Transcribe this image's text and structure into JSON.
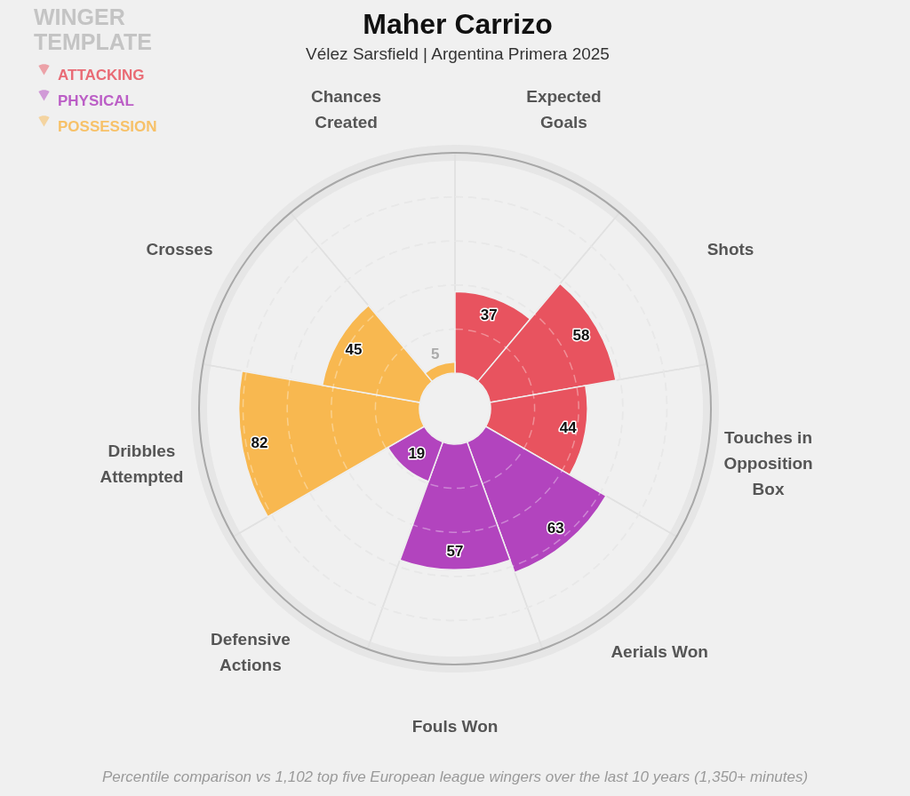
{
  "chart_data": {
    "type": "other",
    "title": "Maher Carrizo",
    "subtitle": "Vélez Sarsfield | Argentina Primera 2025",
    "categories": [
      "Expected Goals",
      "Shots",
      "Touches in Opposition Box",
      "Aerials Won",
      "Fouls Won",
      "Defensive Actions",
      "Dribbles Attempted",
      "Crosses",
      "Chances Created"
    ],
    "series": [
      {
        "name": "ATTACKING",
        "color": "#e8535f",
        "values": [
          37,
          58,
          44,
          null,
          null,
          null,
          null,
          null,
          null
        ]
      },
      {
        "name": "PHYSICAL",
        "color": "#b244be",
        "values": [
          null,
          null,
          null,
          63,
          57,
          19,
          null,
          null,
          null
        ]
      },
      {
        "name": "POSSESSION",
        "color": "#f8b850",
        "values": [
          null,
          null,
          null,
          null,
          null,
          null,
          82,
          45,
          5
        ]
      }
    ],
    "data_labels": true,
    "legend": "top left",
    "legend_title": "WINGER TEMPLATE",
    "annotations": [
      "Percentile comparison vs 1,102 top five European league wingers over the last 10 years (1,350+ minutes)"
    ]
  }
}
